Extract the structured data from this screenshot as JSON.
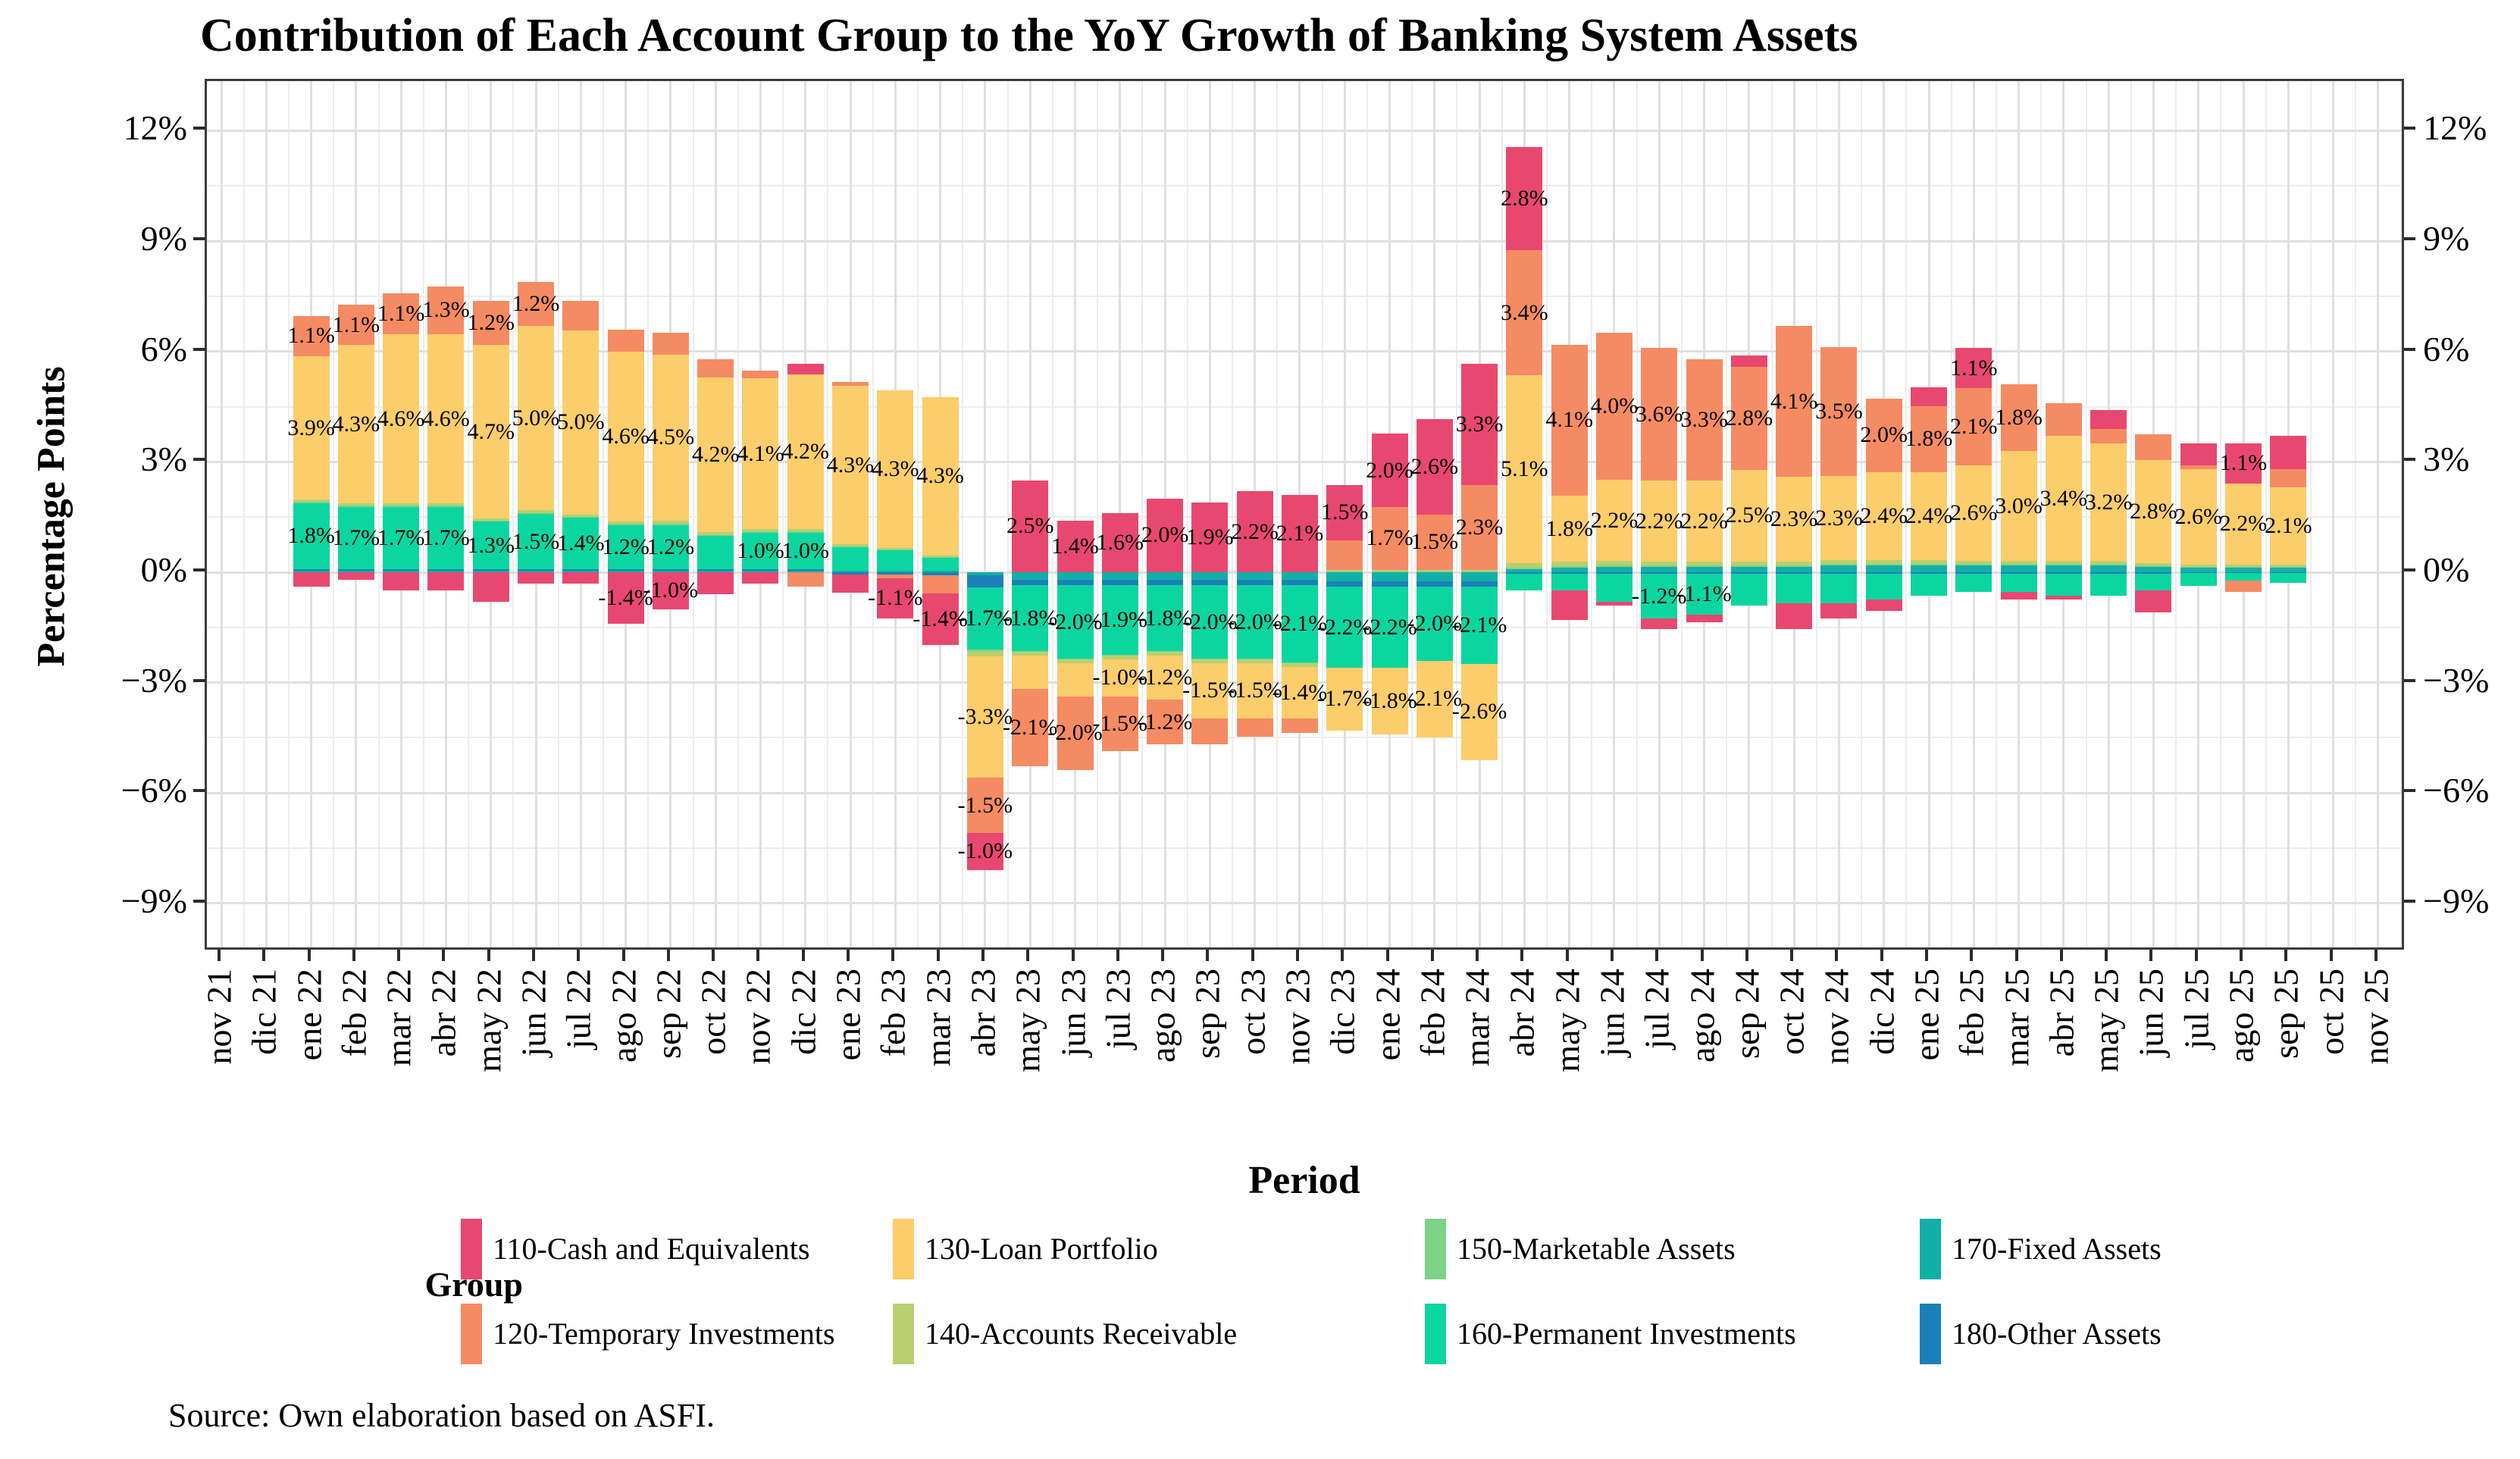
{
  "page": {
    "title": "Contribution of Each Account Group to the YoY Growth of Banking System Assets",
    "source": "Source: Own elaboration based on ASFI."
  },
  "axes": {
    "x_title": "Period",
    "y_title": "Percentage Points",
    "y_ticks": [
      {
        "value": 12,
        "label": "12%"
      },
      {
        "value": 9,
        "label": "9%"
      },
      {
        "value": 6,
        "label": "6%"
      },
      {
        "value": 3,
        "label": "3%"
      },
      {
        "value": 0,
        "label": "0%"
      },
      {
        "value": -3,
        "label": "−3%"
      },
      {
        "value": -6,
        "label": "−6%"
      },
      {
        "value": -9,
        "label": "−9%"
      }
    ]
  },
  "legend": {
    "title": "Group",
    "items": [
      {
        "id": "110",
        "label": "110-Cash and Equivalents",
        "color": "#E8486F"
      },
      {
        "id": "120",
        "label": "120-Temporary Investments",
        "color": "#F58B63"
      },
      {
        "id": "130",
        "label": "130-Loan Portfolio",
        "color": "#FBCD6B"
      },
      {
        "id": "140",
        "label": "140-Accounts Receivable",
        "color": "#B9CF70"
      },
      {
        "id": "150",
        "label": "150-Marketable Assets",
        "color": "#7CD385"
      },
      {
        "id": "160",
        "label": "160-Permanent Investments",
        "color": "#0CD6A0"
      },
      {
        "id": "170",
        "label": "170-Fixed Assets",
        "color": "#12AFA9"
      },
      {
        "id": "180",
        "label": "180-Other Assets",
        "color": "#1C80B8"
      }
    ]
  },
  "chart_data": {
    "type": "bar",
    "stacked": true,
    "title": "Contribution of Each Account Group to the YoY Growth of Banking System Assets",
    "xlabel": "Period",
    "ylabel": "Percentage Points",
    "ylim": [
      -10.35,
      13.35
    ],
    "ytick_values": [
      12,
      9,
      6,
      3,
      0,
      -3,
      -6,
      -9
    ],
    "grid": "major and minor, light gray on white",
    "legend_position": "bottom",
    "label_rule": "segment data labels shown when |value| >= 1.0, format x.x%",
    "stack_order_from_zero": [
      "170",
      "180",
      "160",
      "150",
      "140",
      "130",
      "120",
      "110"
    ],
    "categories": [
      "nov 21",
      "dic 21",
      "ene 22",
      "feb 22",
      "mar 22",
      "abr 22",
      "may 22",
      "jun 22",
      "jul 22",
      "ago 22",
      "sep 22",
      "oct 22",
      "nov 22",
      "dic 22",
      "ene 23",
      "feb 23",
      "mar 23",
      "abr 23",
      "may 23",
      "jun 23",
      "jul 23",
      "ago 23",
      "sep 23",
      "oct 23",
      "nov 23",
      "dic 23",
      "ene 24",
      "feb 24",
      "mar 24",
      "abr 24",
      "may 24",
      "jun 24",
      "jul 24",
      "ago 24",
      "sep 24",
      "oct 24",
      "nov 24",
      "dic 24",
      "ene 25",
      "feb 25",
      "mar 25",
      "abr 25",
      "may 25",
      "jun 25",
      "jul 25",
      "ago 25",
      "sep 25",
      "oct 25",
      "nov 25"
    ],
    "series": [
      {
        "id": "110",
        "name": "110-Cash and Equivalents",
        "color": "#E8486F",
        "values": [
          null,
          null,
          -0.4,
          -0.2,
          -0.5,
          -0.5,
          -0.8,
          -0.3,
          -0.3,
          -1.4,
          -1.0,
          -0.6,
          -0.3,
          0.3,
          -0.5,
          -1.1,
          -1.4,
          -1.0,
          2.5,
          1.4,
          1.6,
          2.0,
          1.9,
          2.2,
          2.1,
          1.5,
          2.0,
          2.6,
          3.3,
          2.8,
          -0.8,
          -0.1,
          -0.3,
          -0.2,
          0.3,
          -0.7,
          -0.4,
          -0.3,
          0.5,
          1.1,
          -0.2,
          -0.1,
          0.5,
          -0.6,
          0.6,
          1.1,
          0.9,
          null,
          null
        ]
      },
      {
        "id": "120",
        "name": "120-Temporary Investments",
        "color": "#F58B63",
        "values": [
          null,
          null,
          1.1,
          1.1,
          1.1,
          1.3,
          1.2,
          1.2,
          0.8,
          0.6,
          0.6,
          0.5,
          0.2,
          -0.4,
          0.1,
          -0.1,
          -0.5,
          -1.5,
          -2.1,
          -2.0,
          -1.5,
          -1.2,
          -0.7,
          -0.5,
          -0.4,
          0.8,
          1.7,
          1.5,
          2.3,
          3.4,
          4.1,
          4.0,
          3.6,
          3.3,
          2.8,
          4.1,
          3.5,
          2.0,
          1.8,
          2.1,
          1.8,
          0.9,
          0.4,
          0.7,
          0.1,
          -0.3,
          0.5,
          null,
          null
        ]
      },
      {
        "id": "130",
        "name": "130-Loan Portfolio",
        "color": "#FBCD6B",
        "values": [
          null,
          null,
          3.9,
          4.3,
          4.6,
          4.6,
          4.7,
          5.0,
          5.0,
          4.6,
          4.5,
          4.2,
          4.1,
          4.2,
          4.3,
          4.3,
          4.3,
          -3.3,
          -0.9,
          -0.9,
          -1.0,
          -1.2,
          -1.5,
          -1.5,
          -1.4,
          -1.7,
          -1.8,
          -2.1,
          -2.6,
          5.1,
          1.8,
          2.2,
          2.2,
          2.2,
          2.5,
          2.3,
          2.3,
          2.4,
          2.4,
          2.6,
          3.0,
          3.4,
          3.2,
          2.8,
          2.6,
          2.2,
          2.1,
          null,
          null
        ]
      },
      {
        "id": "140",
        "name": "140-Accounts Receivable",
        "color": "#B9CF70",
        "values": [
          null,
          null,
          0.06,
          0.06,
          0.06,
          0.06,
          0.06,
          0.08,
          0.06,
          0.08,
          0.1,
          0.08,
          0.06,
          0.06,
          0.05,
          0.04,
          0.04,
          -0.15,
          -0.1,
          -0.1,
          -0.1,
          -0.1,
          -0.1,
          -0.1,
          -0.1,
          0.05,
          0.05,
          0.05,
          0.05,
          0.12,
          0.12,
          0.12,
          0.1,
          0.1,
          0.1,
          0.1,
          0.1,
          0.1,
          0.1,
          0.08,
          0.08,
          0.08,
          0.08,
          0.06,
          0.06,
          0.06,
          0.06,
          null,
          null
        ]
      },
      {
        "id": "150",
        "name": "150-Marketable Assets",
        "color": "#7CD385",
        "values": [
          null,
          null,
          0.03,
          0.03,
          0.03,
          0.03,
          0.03,
          0.03,
          0.03,
          0.03,
          0.03,
          0.03,
          0.03,
          0.03,
          0.02,
          0.02,
          0.02,
          -0.03,
          -0.02,
          -0.02,
          -0.02,
          -0.02,
          -0.02,
          -0.02,
          -0.02,
          0.02,
          0.02,
          0.02,
          0.02,
          0.05,
          0.04,
          0.04,
          0.04,
          0.04,
          0.04,
          0.04,
          0.04,
          0.04,
          0.04,
          0.04,
          0.04,
          0.04,
          0.04,
          0.03,
          0.03,
          0.03,
          0.03,
          null,
          null
        ]
      },
      {
        "id": "160",
        "name": "160-Permanent Investments",
        "color": "#0CD6A0",
        "values": [
          null,
          null,
          1.8,
          1.7,
          1.7,
          1.7,
          1.3,
          1.5,
          1.4,
          1.2,
          1.2,
          0.9,
          1.0,
          1.0,
          0.65,
          0.55,
          0.35,
          -1.7,
          -1.8,
          -2.0,
          -1.9,
          -1.8,
          -2.0,
          -2.0,
          -2.1,
          -2.2,
          -2.2,
          -2.0,
          -2.1,
          -0.45,
          -0.45,
          -0.75,
          -1.2,
          -1.1,
          -0.85,
          -0.8,
          -0.8,
          -0.7,
          -0.6,
          -0.5,
          -0.5,
          -0.6,
          -0.6,
          -0.45,
          -0.35,
          -0.2,
          -0.25,
          null,
          null
        ]
      },
      {
        "id": "170",
        "name": "170-Fixed Assets",
        "color": "#12AFA9",
        "values": [
          null,
          null,
          0.05,
          0.05,
          0.05,
          0.05,
          0.05,
          0.05,
          0.05,
          0.05,
          0.05,
          0.05,
          0.05,
          0.05,
          0.04,
          0.04,
          0.05,
          -0.08,
          -0.2,
          -0.2,
          -0.2,
          -0.2,
          -0.2,
          -0.2,
          -0.2,
          -0.25,
          -0.25,
          -0.25,
          -0.25,
          0.08,
          0.12,
          0.15,
          0.15,
          0.15,
          0.15,
          0.15,
          0.18,
          0.18,
          0.18,
          0.18,
          0.18,
          0.18,
          0.18,
          0.15,
          0.12,
          0.12,
          0.12,
          null,
          null
        ]
      },
      {
        "id": "180",
        "name": "180-Other Assets",
        "color": "#1C80B8",
        "values": [
          null,
          null,
          0.03,
          0.03,
          0.03,
          0.03,
          0.03,
          0.03,
          0.03,
          0.03,
          0.03,
          0.03,
          0.03,
          0.03,
          -0.06,
          -0.06,
          -0.08,
          -0.33,
          -0.15,
          -0.15,
          -0.15,
          -0.15,
          -0.15,
          -0.15,
          -0.15,
          -0.15,
          -0.15,
          -0.15,
          -0.15,
          -0.04,
          -0.04,
          -0.05,
          -0.05,
          -0.05,
          -0.05,
          -0.05,
          -0.05,
          -0.05,
          -0.04,
          -0.04,
          -0.04,
          -0.04,
          -0.04,
          -0.05,
          -0.03,
          -0.03,
          -0.03,
          null,
          null
        ]
      }
    ]
  }
}
